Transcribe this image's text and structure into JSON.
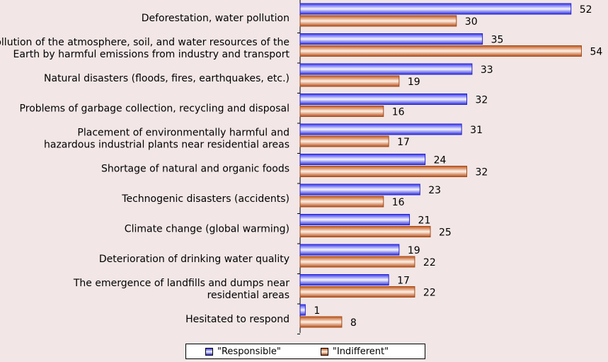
{
  "chart_data": {
    "type": "bar",
    "orientation": "horizontal",
    "categories": [
      [
        "Deforestation, water pollution"
      ],
      [
        "Pollution of the atmosphere, soil, and water resources of the",
        "Earth by harmful emissions from industry and transport"
      ],
      [
        "Natural disasters (floods, fires, earthquakes, etc.)"
      ],
      [
        "Problems of garbage collection, recycling and disposal"
      ],
      [
        "Placement of environmentally harmful and",
        "hazardous industrial plants near residential areas"
      ],
      [
        "Shortage of natural and organic foods"
      ],
      [
        "Technogenic disasters (accidents)"
      ],
      [
        "Climate change (global warming)"
      ],
      [
        "Deterioration of drinking water quality"
      ],
      [
        "The emergence of landfills and dumps near",
        "residential areas"
      ],
      [
        "Hesitated to respond"
      ]
    ],
    "series": [
      {
        "name": "\"Responsible\"",
        "color": "#3333ee",
        "values": [
          52,
          35,
          33,
          32,
          31,
          24,
          23,
          21,
          19,
          17,
          1
        ]
      },
      {
        "name": "\"Indifferent\"",
        "color": "#c8642a",
        "values": [
          30,
          54,
          19,
          16,
          17,
          32,
          16,
          25,
          22,
          22,
          8
        ]
      }
    ],
    "xlim": [
      0,
      55
    ],
    "grid": false,
    "data_labels": true,
    "legend_position": "bottom"
  }
}
